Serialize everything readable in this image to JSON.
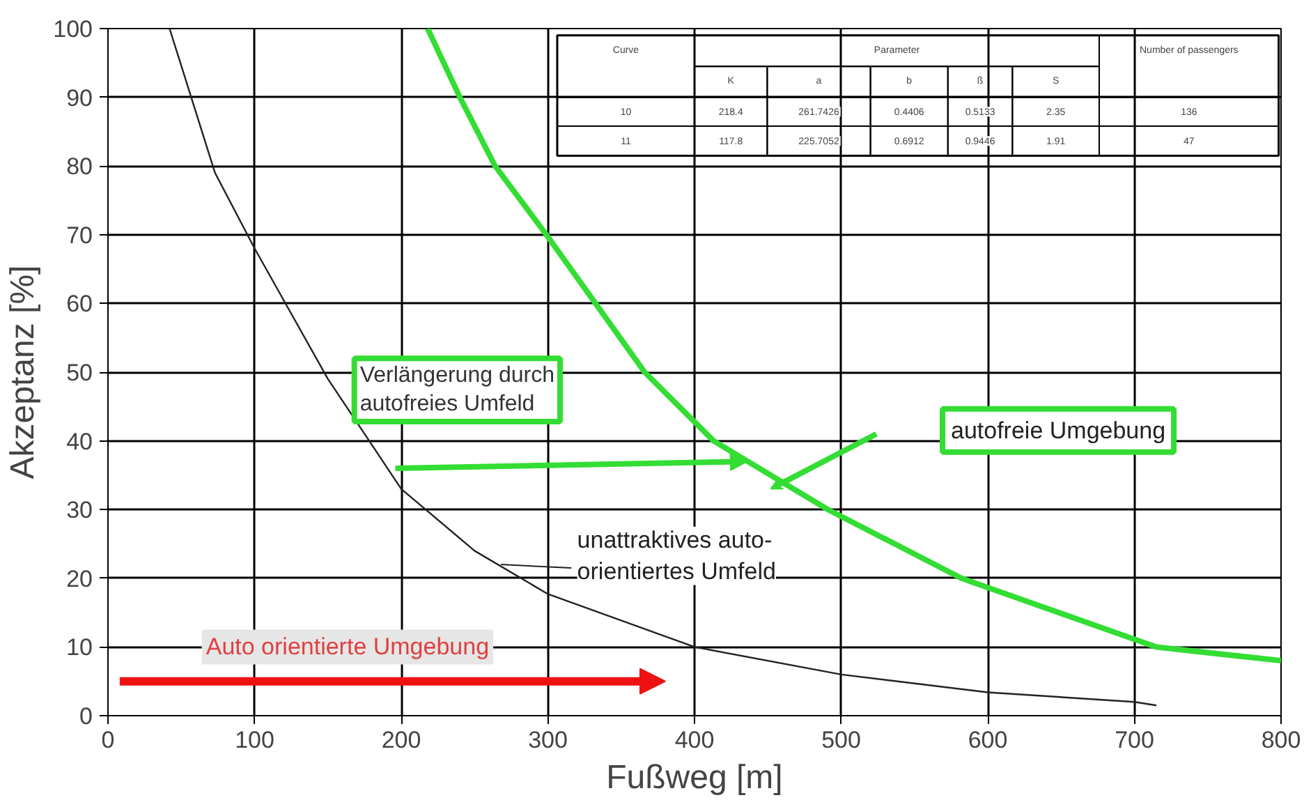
{
  "chart_data": {
    "type": "line",
    "xlabel": "Fußweg [m]",
    "ylabel": "Akzeptanz [%]",
    "xlim": [
      0,
      800
    ],
    "ylim": [
      0,
      100
    ],
    "xticks": [
      0,
      100,
      200,
      300,
      400,
      500,
      600,
      700,
      800
    ],
    "yticks": [
      0,
      10,
      20,
      30,
      40,
      50,
      60,
      70,
      80,
      90,
      100
    ],
    "grid": true,
    "marker": "none",
    "line_style": "solid",
    "series": [
      {
        "color": "#222222",
        "x": [
          42,
          73,
          100,
          150,
          200,
          250,
          300,
          400,
          500,
          600,
          700,
          715
        ],
        "values": [
          100,
          79,
          68,
          49,
          33,
          24,
          17.7,
          10,
          6,
          3.4,
          2,
          1.5
        ]
      },
      {
        "color": "#33dd33",
        "x": [
          218,
          240,
          264,
          299,
          366,
          413,
          491,
          582,
          715,
          800
        ],
        "values": [
          100,
          90,
          80,
          70,
          50,
          40,
          30,
          20,
          10,
          8
        ]
      }
    ],
    "annotations": [
      "Verlängerung durch\nautofreies Umfeld",
      "autofreie Umgebung",
      "unattraktives auto-\norientiertes Umfeld",
      "Auto orientierte Umgebung",
      "Curve",
      "Parameter",
      "Number of passengers",
      "K",
      "a",
      "b",
      "ß",
      "S",
      "10",
      "218.4",
      "261.7426",
      "0.4406",
      "0.5133",
      "2.35",
      "136",
      "11",
      "117.8",
      "225.7052",
      "0.6912",
      "0.9446",
      "1.91",
      "47"
    ]
  }
}
